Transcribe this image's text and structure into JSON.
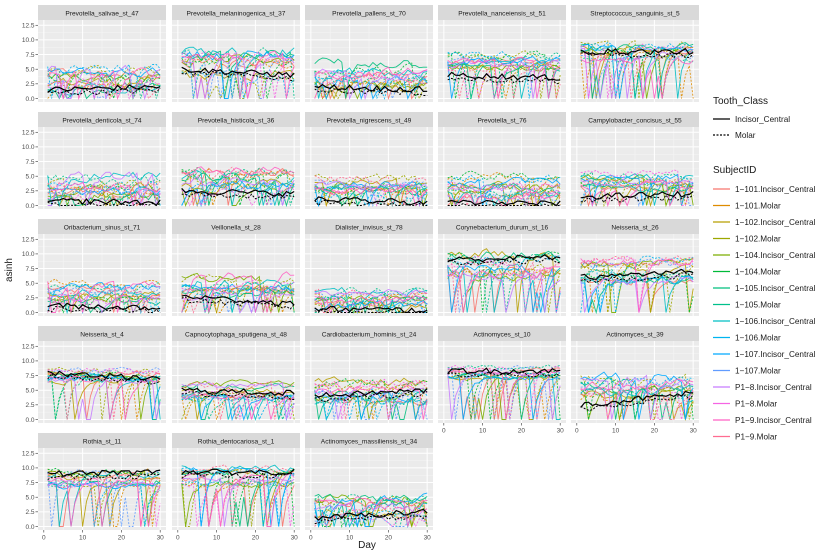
{
  "chart_data": {
    "type": "line",
    "layout": "facet-grid",
    "ylabel": "asinh",
    "xlabel": "Day",
    "xlim": [
      0,
      30
    ],
    "ylim": [
      0,
      12.5
    ],
    "x_ticks": [
      0,
      10,
      20,
      30
    ],
    "y_ticks": [
      0.0,
      2.5,
      5.0,
      7.5,
      10.0,
      12.5
    ],
    "y_tick_labels": [
      "0.0",
      "2.5",
      "5.0",
      "7.5",
      "10.0",
      "12.5"
    ],
    "legend_linetype": {
      "title": "Tooth_Class",
      "entries": [
        {
          "label": "Incisor_Central",
          "dash": "solid"
        },
        {
          "label": "Molar",
          "dash": "dotted"
        }
      ]
    },
    "legend_subject": {
      "title": "SubjectID",
      "entries": [
        {
          "label": "1−101.Incisor_Central",
          "color": "#F8766D"
        },
        {
          "label": "1−101.Molar",
          "color": "#DE8C00"
        },
        {
          "label": "1−102.Incisor_Central",
          "color": "#B79F00"
        },
        {
          "label": "1−102.Molar",
          "color": "#9DA700"
        },
        {
          "label": "1−104.Incisor_Central",
          "color": "#7CAE00"
        },
        {
          "label": "1−104.Molar",
          "color": "#00BA38"
        },
        {
          "label": "1−105.Incisor_Central",
          "color": "#00BF7D"
        },
        {
          "label": "1−105.Molar",
          "color": "#00C08B"
        },
        {
          "label": "1−106.Incisor_Central",
          "color": "#00BFC4"
        },
        {
          "label": "1−106.Molar",
          "color": "#00B4F0"
        },
        {
          "label": "1−107.Incisor_Central",
          "color": "#00A9FF"
        },
        {
          "label": "1−107.Molar",
          "color": "#619CFF"
        },
        {
          "label": "P1−8.Incisor_Central",
          "color": "#C77CFF"
        },
        {
          "label": "P1−8.Molar",
          "color": "#F564E3"
        },
        {
          "label": "P1−9.Incisor_Central",
          "color": "#FF61C3"
        },
        {
          "label": "P1−9.Molar",
          "color": "#FF6C91"
        }
      ]
    },
    "panels": [
      {
        "title": "Prevotella_salivae_st_47",
        "level": 3.6,
        "spread": 2.0,
        "mean_start": 1.5,
        "mean_end": 2.0
      },
      {
        "title": "Prevotella_melaninogenica_st_37",
        "level": 6.2,
        "spread": 2.2,
        "mean_start": 5.0,
        "mean_end": 4.0
      },
      {
        "title": "Prevotella_pallens_st_70",
        "level": 4.0,
        "spread": 2.2,
        "mean_start": 2.0,
        "mean_end": 1.5
      },
      {
        "title": "Prevotella_nanceiensis_st_51",
        "level": 6.0,
        "spread": 1.6,
        "mean_start": 4.0,
        "mean_end": 3.5
      },
      {
        "title": "Streptococcus_sanguinis_st_5",
        "level": 8.0,
        "spread": 1.5,
        "mean_start": 8.0,
        "mean_end": 8.0
      },
      {
        "title": "Prevotella_denticola_st_74",
        "level": 3.4,
        "spread": 2.0,
        "mean_start": 0.8,
        "mean_end": 0.5
      },
      {
        "title": "Prevotella_histicola_st_36",
        "level": 4.4,
        "spread": 2.2,
        "mean_start": 2.5,
        "mean_end": 2.0
      },
      {
        "title": "Prevotella_nigrescens_st_49",
        "level": 3.2,
        "spread": 1.8,
        "mean_start": 1.0,
        "mean_end": 0.5
      },
      {
        "title": "Prevotella_st_76",
        "level": 3.2,
        "spread": 1.8,
        "mean_start": 0.6,
        "mean_end": 0.3
      },
      {
        "title": "Campylobacter_concisus_st_55",
        "level": 4.0,
        "spread": 1.6,
        "mean_start": 1.5,
        "mean_end": 2.0
      },
      {
        "title": "Oribacterium_sinus_st_71",
        "level": 3.5,
        "spread": 1.6,
        "mean_start": 1.2,
        "mean_end": 0.8
      },
      {
        "title": "Veillonella_st_28",
        "level": 4.6,
        "spread": 1.8,
        "mean_start": 2.8,
        "mean_end": 1.5
      },
      {
        "title": "Dialister_invisus_st_78",
        "level": 2.6,
        "spread": 1.6,
        "mean_start": 0.6,
        "mean_end": 0.4
      },
      {
        "title": "Corynebacterium_durum_st_16",
        "level": 8.0,
        "spread": 2.2,
        "mean_start": 9.0,
        "mean_end": 9.5
      },
      {
        "title": "Neisseria_st_26",
        "level": 7.0,
        "spread": 2.0,
        "mean_start": 6.0,
        "mean_end": 7.0
      },
      {
        "title": "Neisseria_st_4",
        "level": 8.0,
        "spread": 1.4,
        "mean_start": 8.0,
        "mean_end": 7.0
      },
      {
        "title": "Capnocytophaga_sputigena_st_48",
        "level": 5.0,
        "spread": 1.4,
        "mean_start": 5.0,
        "mean_end": 4.5
      },
      {
        "title": "Cardiobacterium_hominis_st_24",
        "level": 5.0,
        "spread": 2.0,
        "mean_start": 4.0,
        "mean_end": 5.0
      },
      {
        "title": "Actinomyces_st_10",
        "level": 8.0,
        "spread": 1.0,
        "mean_start": 8.3,
        "mean_end": 8.3
      },
      {
        "title": "Actinomyces_st_39",
        "level": 5.0,
        "spread": 2.2,
        "mean_start": 2.5,
        "mean_end": 4.5
      },
      {
        "title": "Rothia_st_11",
        "level": 8.2,
        "spread": 1.4,
        "mean_start": 9.0,
        "mean_end": 9.3
      },
      {
        "title": "Rothia_dentocariosa_st_1",
        "level": 8.6,
        "spread": 1.4,
        "mean_start": 9.3,
        "mean_end": 9.3
      },
      {
        "title": "Actinomyces_massiliensis_st_34",
        "level": 3.0,
        "spread": 2.0,
        "mean_start": 1.5,
        "mean_end": 2.5
      }
    ]
  }
}
